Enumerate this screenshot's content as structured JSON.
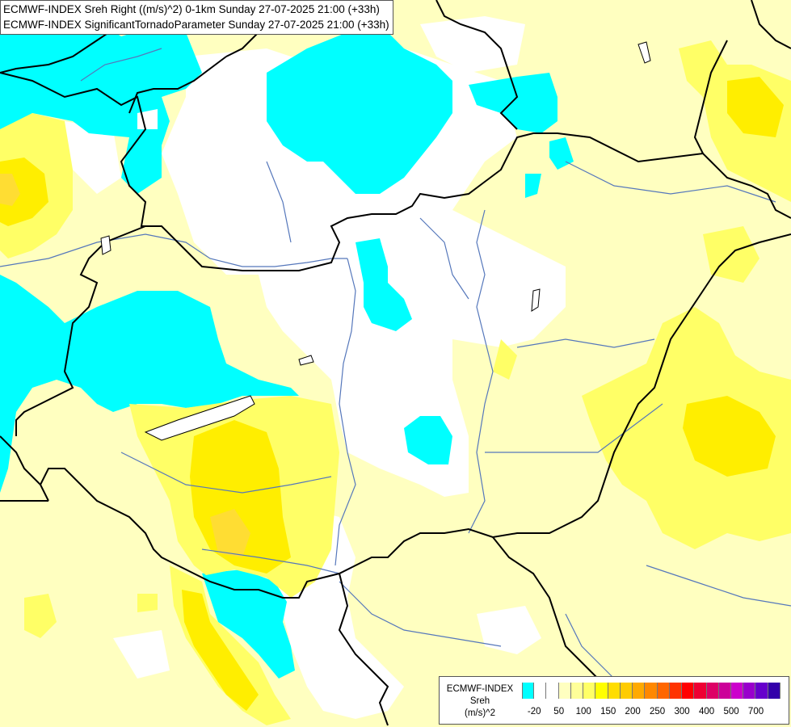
{
  "titles": {
    "line1": "ECMWF-INDEX Sreh Right ((m/s)^2) 0-1km Sunday 27-07-2025 21:00 (+33h)",
    "line2": "ECMWF-INDEX SignificantTornadoParameter Sunday 27-07-2025 21:00 (+33h)"
  },
  "legend": {
    "source": "ECMWF-INDEX",
    "parameter": "Sreh",
    "unit": "(m/s)^2",
    "colors": [
      "#00ffff",
      "#ffffff",
      "#ffffff",
      "#ffffc0",
      "#ffff99",
      "#ffff66",
      "#ffff00",
      "#ffdd00",
      "#ffcc00",
      "#ffaa00",
      "#ff8800",
      "#ff6600",
      "#ff3300",
      "#ff0000",
      "#ee0033",
      "#dd0066",
      "#cc0099",
      "#cc00cc",
      "#9900cc",
      "#6600cc",
      "#3300aa"
    ],
    "tick_labels": [
      "-20",
      "50",
      "100",
      "150",
      "200",
      "250",
      "300",
      "400",
      "500",
      "700"
    ]
  },
  "map": {
    "colors": {
      "background": "#ffffc0",
      "low_sreh": "#00ffff",
      "neutral": "#ffffff",
      "moderate": "#ffff66",
      "elevated": "#ffee00",
      "high": "#ffdd33",
      "border": "#000000",
      "river": "#5577bb"
    }
  }
}
